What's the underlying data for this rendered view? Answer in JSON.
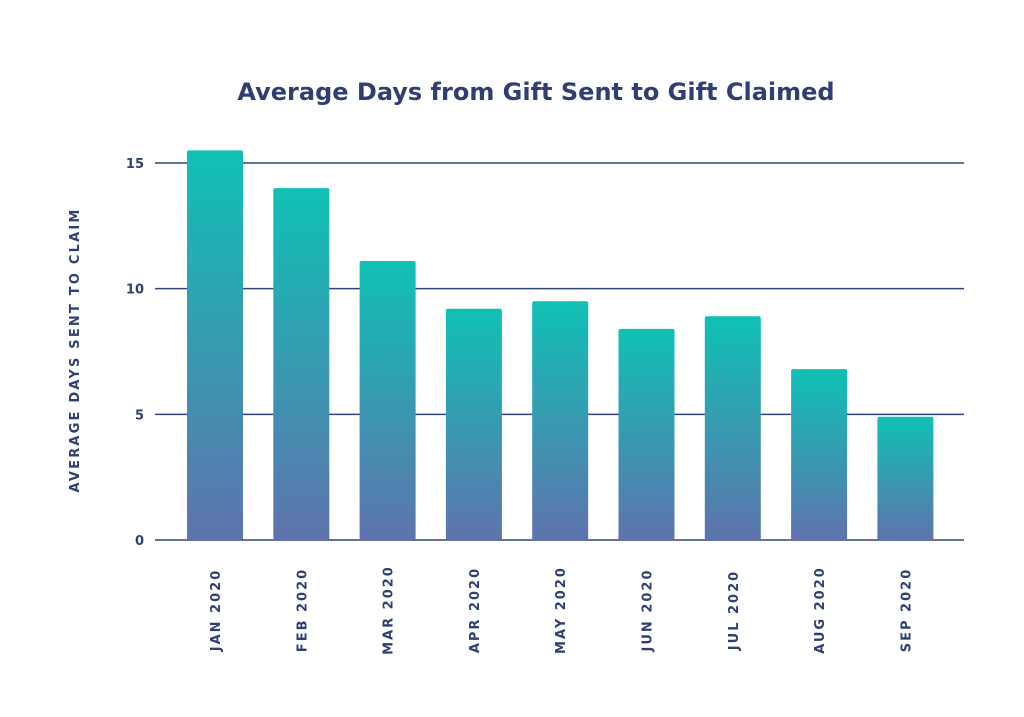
{
  "colors": {
    "title": "#2f3f73",
    "text": "#2f3f73",
    "grid": "#33447a",
    "bar_top": "#0fc1b5",
    "bar_bottom": "#5f73ad"
  },
  "chart_data": {
    "type": "bar",
    "title": "Average Days from Gift Sent to Gift Claimed",
    "xlabel": "",
    "ylabel": "AVERAGE DAYS SENT TO CLAIM",
    "categories": [
      "JAN 2020",
      "FEB 2020",
      "MAR 2020",
      "APR 2020",
      "MAY 2020",
      "JUN 2020",
      "JUL 2020",
      "AUG 2020",
      "SEP 2020"
    ],
    "values": [
      15.5,
      14.0,
      11.1,
      9.2,
      9.5,
      8.4,
      8.9,
      6.8,
      4.9
    ],
    "yticks": [
      0,
      5,
      10,
      15
    ],
    "ytick_labels": [
      "0",
      "5",
      "10",
      "15"
    ],
    "ylim": [
      0,
      15.5
    ],
    "grid": true,
    "legend": "none"
  }
}
